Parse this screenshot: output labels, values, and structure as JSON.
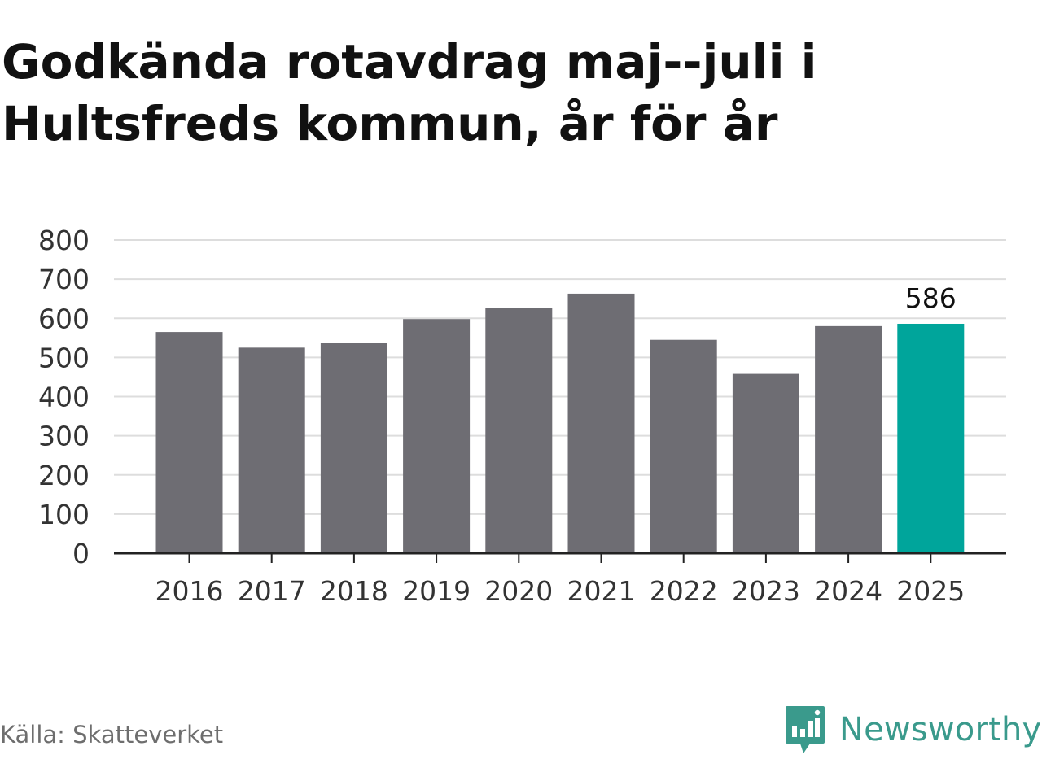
{
  "title_lines": [
    "Godkända rotavdrag maj--juli i",
    "Hultsfreds kommun, år för år"
  ],
  "source": "Källa: Skatteverket",
  "brand": {
    "name": "Newsworthy",
    "icon": "newsworthy-logo-icon",
    "color": "#3a9a8c"
  },
  "colors": {
    "bar": "#6e6d73",
    "highlight": "#00a59b",
    "grid": "#dddddd",
    "axis": "#222222",
    "text": "#333333"
  },
  "chart_data": {
    "type": "bar",
    "title": "Godkända rotavdrag maj--juli i Hultsfreds kommun, år för år",
    "xlabel": "",
    "ylabel": "",
    "categories": [
      "2016",
      "2017",
      "2018",
      "2019",
      "2020",
      "2021",
      "2022",
      "2023",
      "2024",
      "2025"
    ],
    "values": [
      565,
      525,
      538,
      598,
      627,
      663,
      545,
      458,
      580,
      586
    ],
    "highlight_index": 9,
    "data_labels": [
      {
        "index": 9,
        "text": "586"
      }
    ],
    "ylim": [
      0,
      800
    ],
    "yticks": [
      0,
      100,
      200,
      300,
      400,
      500,
      600,
      700,
      800
    ],
    "grid": true,
    "legend": "none"
  }
}
